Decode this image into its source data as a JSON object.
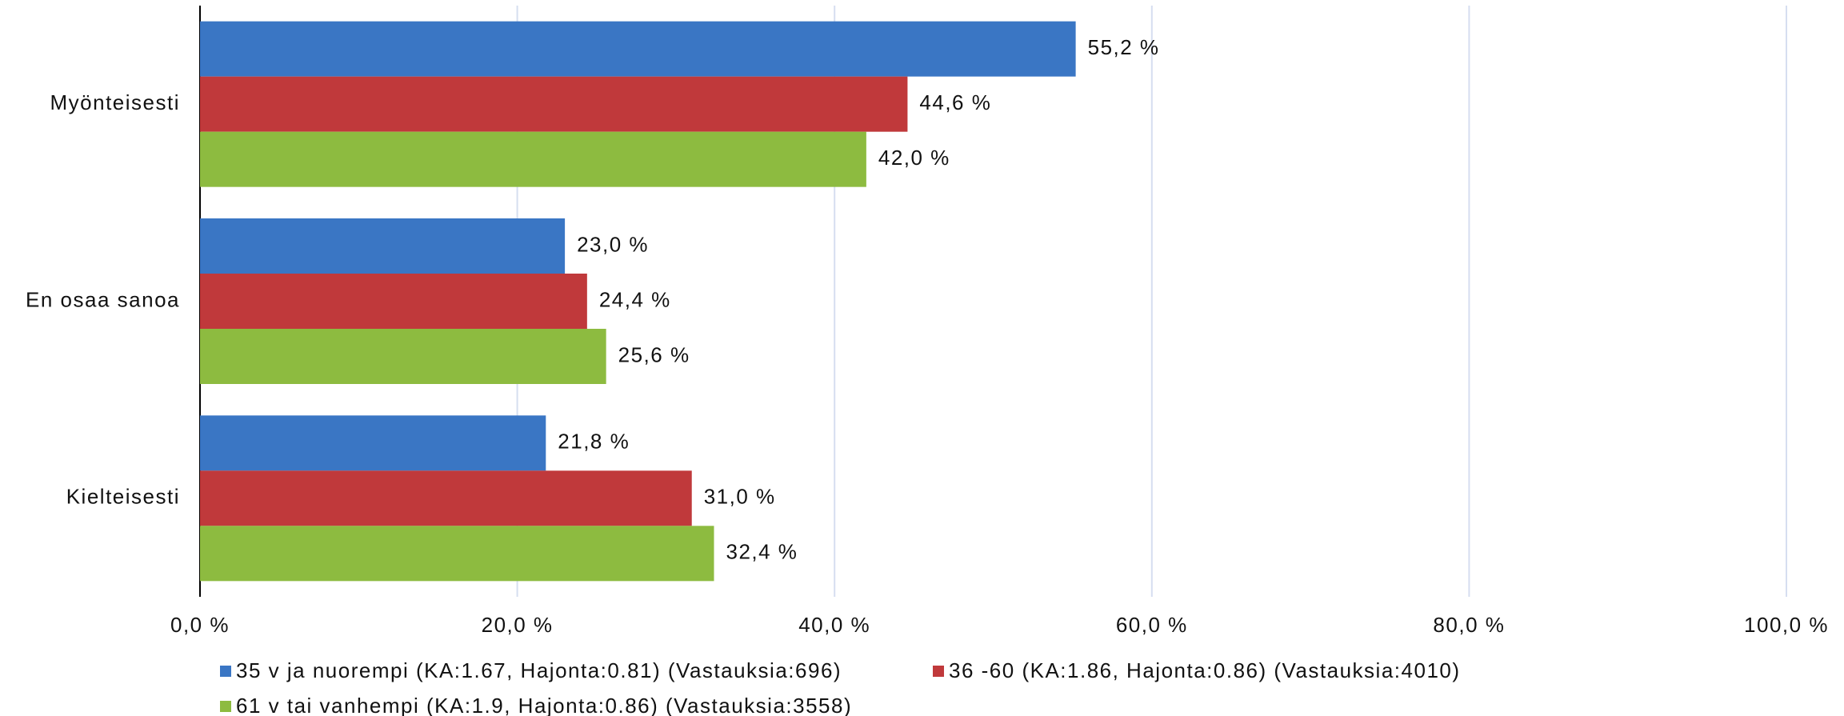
{
  "chart_data": {
    "type": "bar",
    "orientation": "horizontal",
    "categories": [
      "Myönteisesti",
      "En osaa sanoa",
      "Kielteisesti"
    ],
    "series": [
      {
        "name": "35 v ja nuorempi (KA:1.67, Hajonta:0.81) (Vastauksia:696)",
        "color": "#3a76c4",
        "values": [
          55.2,
          23.0,
          21.8
        ],
        "value_labels": [
          "55,2 %",
          "23,0 %",
          "21,8 %"
        ]
      },
      {
        "name": "36 -60 (KA:1.86, Hajonta:0.86) (Vastauksia:4010)",
        "color": "#c0393b",
        "values": [
          44.6,
          24.4,
          31.0
        ],
        "value_labels": [
          "44,6 %",
          "24,4 %",
          "31,0 %"
        ]
      },
      {
        "name": "61 v tai vanhempi (KA:1.9, Hajonta:0.86) (Vastauksia:3558)",
        "color": "#8dbb40",
        "values": [
          42.0,
          25.6,
          32.4
        ],
        "value_labels": [
          "42,0 %",
          "25,6 %",
          "32,4 %"
        ]
      }
    ],
    "xlim": [
      0,
      100
    ],
    "xticks": [
      {
        "value": 0,
        "label": "0,0 %"
      },
      {
        "value": 20,
        "label": "20,0 %"
      },
      {
        "value": 40,
        "label": "40,0 %"
      },
      {
        "value": 60,
        "label": "60,0 %"
      },
      {
        "value": 80,
        "label": "80,0 %"
      },
      {
        "value": 100,
        "label": "100,0 %"
      }
    ],
    "grid": true,
    "legend": "bottom"
  }
}
